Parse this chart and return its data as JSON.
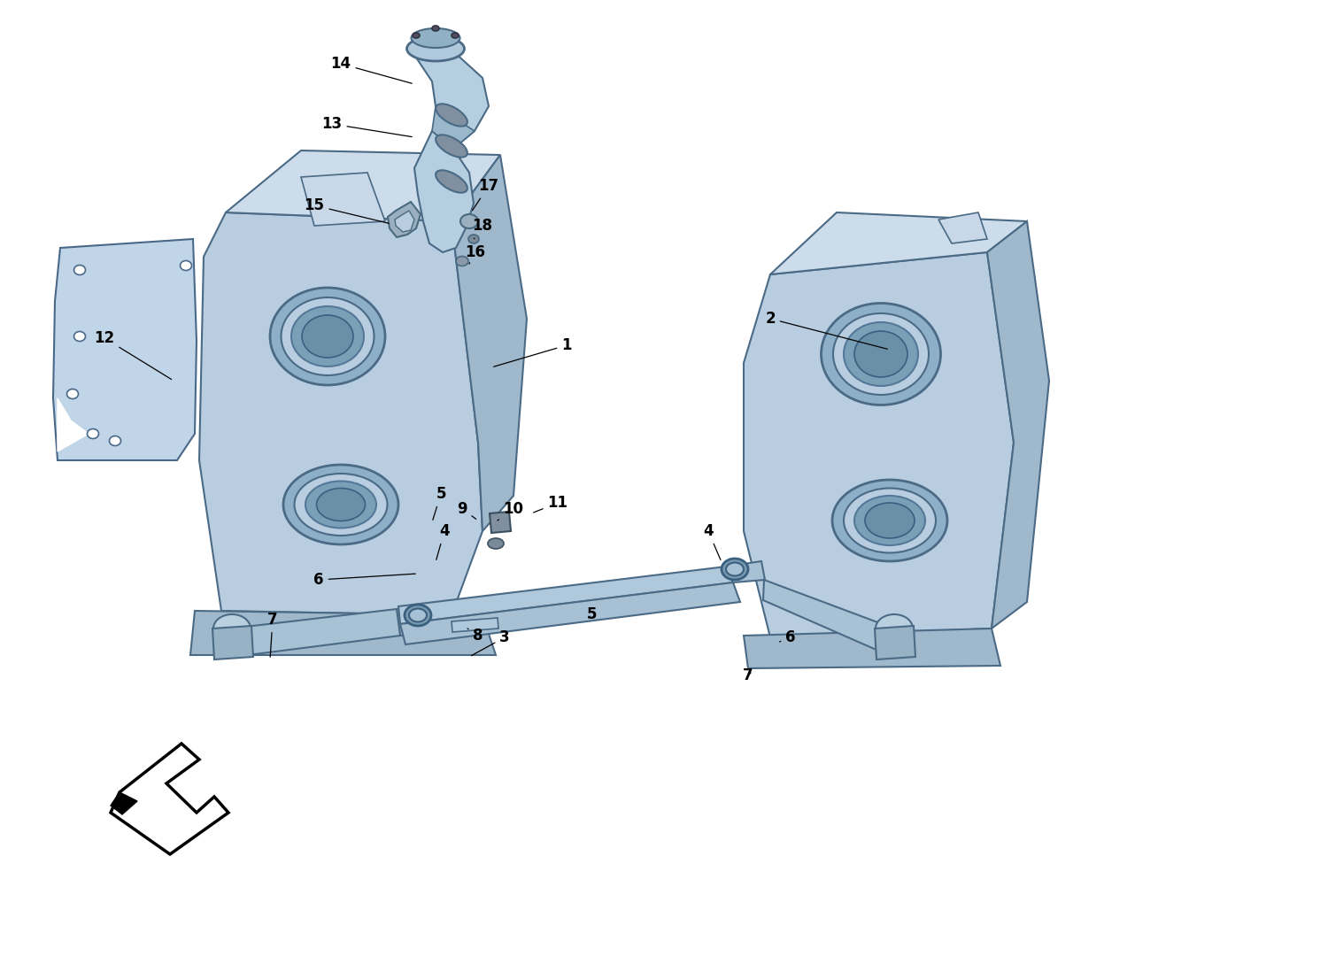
{
  "bg_color": "#ffffff",
  "tank_fill": "#b8cde0",
  "tank_fill_top": "#ccdcea",
  "tank_fill_side": "#a0b8cc",
  "tank_edge": "#4a6a85",
  "tank_edge_light": "#6a8aaa",
  "pipe_fill": "#a8c0d4",
  "pipe_edge": "#4a6a85",
  "bracket_fill": "#c0d5e8",
  "bracket_edge": "#4a6888",
  "arrow_fill": "#ffffff",
  "arrow_edge": "#000000",
  "label_color": "#000000",
  "line_color": "#000000",
  "figsize": [
    15.0,
    10.89
  ],
  "dpi": 100,
  "callouts": [
    [
      "1",
      640,
      390,
      555,
      415
    ],
    [
      "2",
      870,
      360,
      1005,
      395
    ],
    [
      "3",
      570,
      720,
      530,
      742
    ],
    [
      "4",
      502,
      600,
      492,
      635
    ],
    [
      "4",
      800,
      600,
      815,
      635
    ],
    [
      "5",
      498,
      558,
      488,
      590
    ],
    [
      "5",
      668,
      694,
      663,
      700
    ],
    [
      "6",
      360,
      655,
      472,
      648
    ],
    [
      "6",
      893,
      720,
      878,
      726
    ],
    [
      "7",
      308,
      700,
      305,
      745
    ],
    [
      "7",
      845,
      763,
      848,
      760
    ],
    [
      "8",
      540,
      718,
      528,
      710
    ],
    [
      "9",
      522,
      575,
      540,
      588
    ],
    [
      "10",
      580,
      575,
      562,
      588
    ],
    [
      "11",
      630,
      568,
      600,
      580
    ],
    [
      "12",
      118,
      382,
      196,
      430
    ],
    [
      "13",
      375,
      140,
      468,
      155
    ],
    [
      "14",
      385,
      72,
      468,
      95
    ],
    [
      "15",
      355,
      232,
      442,
      253
    ],
    [
      "16",
      537,
      285,
      530,
      298
    ],
    [
      "17",
      552,
      210,
      532,
      240
    ],
    [
      "18",
      545,
      255,
      534,
      272
    ]
  ]
}
